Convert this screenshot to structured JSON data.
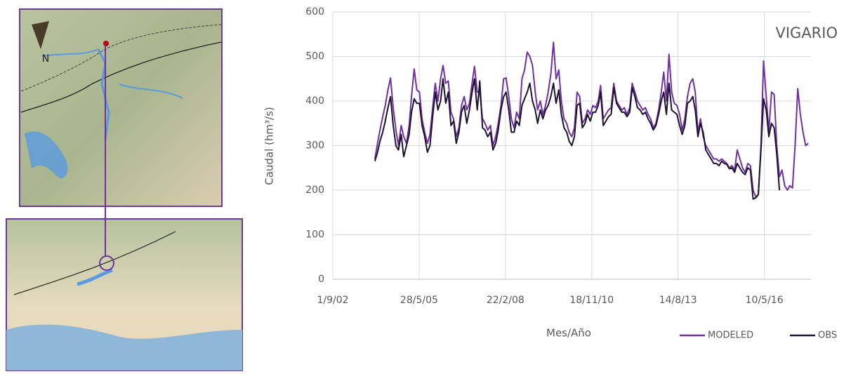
{
  "map": {
    "north_label": "N"
  },
  "chart_data": {
    "type": "line",
    "annotation": "VIGARIO",
    "y_label": "Caudal (hm³/s)",
    "x_label": "Mes/Año",
    "ylim": [
      0,
      600
    ],
    "yticks": [
      0,
      100,
      200,
      300,
      400,
      500,
      600
    ],
    "xlim": [
      "2002-09-01",
      "2017-11-01"
    ],
    "xticks": [
      {
        "value": "2002-09-01",
        "label": "1/9/02"
      },
      {
        "value": "2005-05-28",
        "label": "28/5/05"
      },
      {
        "value": "2008-02-22",
        "label": "22/2/08"
      },
      {
        "value": "2010-11-18",
        "label": "18/11/10"
      },
      {
        "value": "2013-08-14",
        "label": "14/8/13"
      },
      {
        "value": "2016-05-10",
        "label": "10/5/16"
      }
    ],
    "grid": true,
    "legend": "bottom-right",
    "x": [
      "2004-01-01",
      "2004-02-01",
      "2004-03-01",
      "2004-04-01",
      "2004-05-01",
      "2004-06-01",
      "2004-07-01",
      "2004-08-01",
      "2004-09-01",
      "2004-10-01",
      "2004-11-01",
      "2004-12-01",
      "2005-01-01",
      "2005-02-01",
      "2005-03-01",
      "2005-04-01",
      "2005-05-01",
      "2005-06-01",
      "2005-07-01",
      "2005-08-01",
      "2005-09-01",
      "2005-10-01",
      "2005-11-01",
      "2005-12-01",
      "2006-01-01",
      "2006-02-01",
      "2006-03-01",
      "2006-04-01",
      "2006-05-01",
      "2006-06-01",
      "2006-07-01",
      "2006-08-01",
      "2006-09-01",
      "2006-10-01",
      "2006-11-01",
      "2006-12-01",
      "2007-01-01",
      "2007-02-01",
      "2007-03-01",
      "2007-04-01",
      "2007-05-01",
      "2007-06-01",
      "2007-07-01",
      "2007-08-01",
      "2007-09-01",
      "2007-10-01",
      "2007-11-01",
      "2007-12-01",
      "2008-01-01",
      "2008-02-01",
      "2008-03-01",
      "2008-04-01",
      "2008-05-01",
      "2008-06-01",
      "2008-07-01",
      "2008-08-01",
      "2008-09-01",
      "2008-10-01",
      "2008-11-01",
      "2008-12-01",
      "2009-01-01",
      "2009-02-01",
      "2009-03-01",
      "2009-04-01",
      "2009-05-01",
      "2009-06-01",
      "2009-07-01",
      "2009-08-01",
      "2009-09-01",
      "2009-10-01",
      "2009-11-01",
      "2009-12-01",
      "2010-01-01",
      "2010-02-01",
      "2010-03-01",
      "2010-04-01",
      "2010-05-01",
      "2010-06-01",
      "2010-07-01",
      "2010-08-01",
      "2010-09-01",
      "2010-10-01",
      "2010-11-01",
      "2010-12-01",
      "2011-01-01",
      "2011-02-01",
      "2011-03-01",
      "2011-04-01",
      "2011-05-01",
      "2011-06-01",
      "2011-07-01",
      "2011-08-01",
      "2011-09-01",
      "2011-10-01",
      "2011-11-01",
      "2011-12-01",
      "2012-01-01",
      "2012-02-01",
      "2012-03-01",
      "2012-04-01",
      "2012-05-01",
      "2012-06-01",
      "2012-07-01",
      "2012-08-01",
      "2012-09-01",
      "2012-10-01",
      "2012-11-01",
      "2012-12-01",
      "2013-01-01",
      "2013-02-01",
      "2013-03-01",
      "2013-04-01",
      "2013-05-01",
      "2013-06-01",
      "2013-07-01",
      "2013-08-01",
      "2013-09-01",
      "2013-10-01",
      "2013-11-01",
      "2013-12-01",
      "2014-01-01",
      "2014-02-01",
      "2014-03-01",
      "2014-04-01",
      "2014-05-01",
      "2014-06-01",
      "2014-07-01",
      "2014-08-01",
      "2014-09-01",
      "2014-10-01",
      "2014-11-01",
      "2014-12-01",
      "2015-01-01",
      "2015-02-01",
      "2015-03-01",
      "2015-04-01",
      "2015-05-01",
      "2015-06-01",
      "2015-07-01",
      "2015-08-01",
      "2015-09-01",
      "2015-10-01",
      "2015-11-01",
      "2015-12-01",
      "2016-01-01",
      "2016-02-01",
      "2016-03-01",
      "2016-04-01",
      "2016-05-01",
      "2016-06-01",
      "2016-07-01",
      "2016-08-01",
      "2016-09-01",
      "2016-10-01",
      "2016-11-01",
      "2016-12-01",
      "2017-01-01",
      "2017-02-01",
      "2017-03-01",
      "2017-04-01",
      "2017-05-01",
      "2017-06-01",
      "2017-07-01",
      "2017-08-01",
      "2017-09-01",
      "2017-10-01"
    ],
    "series": [
      {
        "name": "MODELED",
        "color": "#7030a0",
        "values": [
          270,
          305,
          335,
          365,
          390,
          425,
          452,
          385,
          335,
          300,
          345,
          320,
          305,
          345,
          410,
          472,
          425,
          420,
          360,
          330,
          305,
          325,
          385,
          440,
          400,
          450,
          480,
          440,
          445,
          375,
          360,
          320,
          340,
          390,
          410,
          380,
          395,
          440,
          478,
          420,
          420,
          360,
          350,
          335,
          345,
          300,
          320,
          350,
          390,
          450,
          452,
          410,
          360,
          340,
          375,
          360,
          450,
          470,
          510,
          500,
          480,
          420,
          380,
          400,
          370,
          390,
          420,
          460,
          532,
          450,
          470,
          400,
          360,
          350,
          330,
          320,
          340,
          420,
          410,
          350,
          360,
          380,
          370,
          390,
          385,
          400,
          435,
          360,
          370,
          380,
          385,
          440,
          400,
          390,
          380,
          385,
          370,
          385,
          440,
          420,
          400,
          390,
          380,
          385,
          370,
          360,
          340,
          350,
          380,
          420,
          465,
          400,
          505,
          420,
          395,
          390,
          370,
          335,
          360,
          410,
          440,
          450,
          420,
          330,
          360,
          320,
          300,
          290,
          280,
          270,
          270,
          265,
          270,
          265,
          260,
          250,
          255,
          245,
          290,
          270,
          250,
          240,
          260,
          255,
          200,
          185,
          190,
          300,
          490,
          410,
          330,
          420,
          415,
          300,
          230,
          245,
          210,
          200,
          210,
          205,
          300,
          428,
          370,
          330,
          300,
          305
        ]
      },
      {
        "name": "OBS",
        "color": "#1c1330",
        "values": [
          265,
          285,
          310,
          330,
          355,
          385,
          410,
          345,
          300,
          290,
          325,
          275,
          300,
          325,
          375,
          405,
          395,
          395,
          345,
          320,
          285,
          300,
          365,
          420,
          380,
          400,
          450,
          395,
          420,
          345,
          355,
          305,
          330,
          375,
          390,
          350,
          380,
          420,
          450,
          380,
          445,
          340,
          335,
          320,
          330,
          290,
          305,
          335,
          380,
          410,
          420,
          380,
          330,
          330,
          355,
          345,
          390,
          405,
          420,
          440,
          400,
          380,
          350,
          380,
          360,
          380,
          390,
          410,
          440,
          395,
          425,
          370,
          340,
          330,
          310,
          300,
          320,
          390,
          395,
          340,
          350,
          370,
          355,
          375,
          375,
          390,
          420,
          345,
          355,
          365,
          370,
          430,
          395,
          385,
          375,
          375,
          365,
          375,
          430,
          410,
          385,
          380,
          370,
          375,
          360,
          350,
          335,
          345,
          370,
          400,
          420,
          370,
          440,
          380,
          375,
          370,
          345,
          325,
          345,
          395,
          400,
          410,
          380,
          320,
          350,
          330,
          290,
          280,
          270,
          260,
          260,
          255,
          265,
          260,
          258,
          248,
          250,
          240,
          260,
          250,
          240,
          235,
          250,
          245,
          180,
          183,
          190,
          290,
          405,
          380,
          320,
          350,
          340,
          280,
          200,
          null,
          null,
          null,
          null,
          null,
          null,
          null,
          null,
          null,
          null,
          null
        ]
      }
    ]
  }
}
